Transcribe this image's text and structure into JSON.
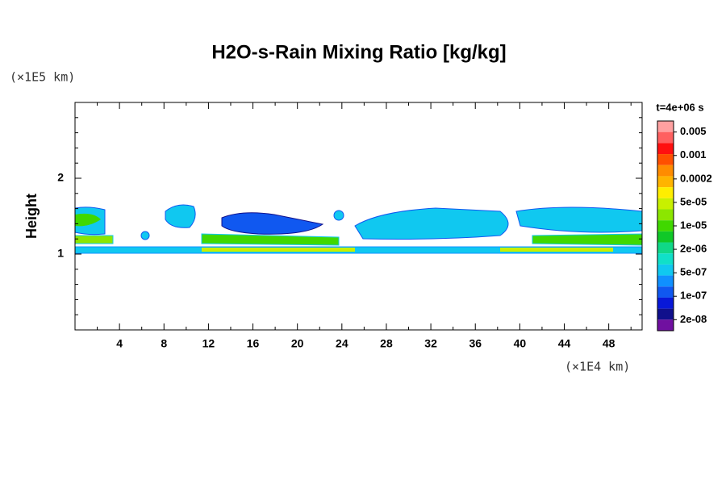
{
  "chart_data": {
    "type": "contour",
    "title": "H2O-s-Rain Mixing Ratio [kg/kg]",
    "y_label": "Height",
    "y_unit": "(×1E5 km)",
    "x_unit": "(×1E4 km)",
    "annotation": "t=4e+06 s",
    "xlim": [
      0,
      51
    ],
    "ylim": [
      0,
      3
    ],
    "xticks": [
      4,
      8,
      12,
      16,
      20,
      24,
      28,
      32,
      36,
      40,
      44,
      48
    ],
    "xminorticks": [
      2,
      6,
      10,
      14,
      18,
      22,
      26,
      30,
      34,
      38,
      42,
      46,
      50
    ],
    "yticks": [
      1,
      2
    ],
    "yminorticks": [
      0.2,
      0.4,
      0.6,
      0.8,
      1.2,
      1.4,
      1.6,
      1.8,
      2.2,
      2.4,
      2.6,
      2.8
    ],
    "colorbar": {
      "colors": [
        "#ffa0a0",
        "#ff6060",
        "#ff1010",
        "#ff5000",
        "#ff8c00",
        "#ffb400",
        "#ffee00",
        "#c8f000",
        "#8ce600",
        "#40d800",
        "#10c828",
        "#10d888",
        "#10e0c8",
        "#10c8f0",
        "#1090ff",
        "#1058f0",
        "#0818d8",
        "#10108c",
        "#7010a0"
      ],
      "ticks": [
        0.005,
        0.001,
        0.0002,
        {
          "value": 5e-05,
          "label": "5e-05"
        },
        {
          "value": 1e-05,
          "label": "1e-05"
        },
        {
          "value": 2e-06,
          "label": "2e-06"
        },
        {
          "value": 5e-07,
          "label": "5e-07"
        },
        {
          "value": 1e-07,
          "label": "1e-07"
        },
        {
          "value": 2e-08,
          "label": "2e-08"
        }
      ]
    }
  }
}
